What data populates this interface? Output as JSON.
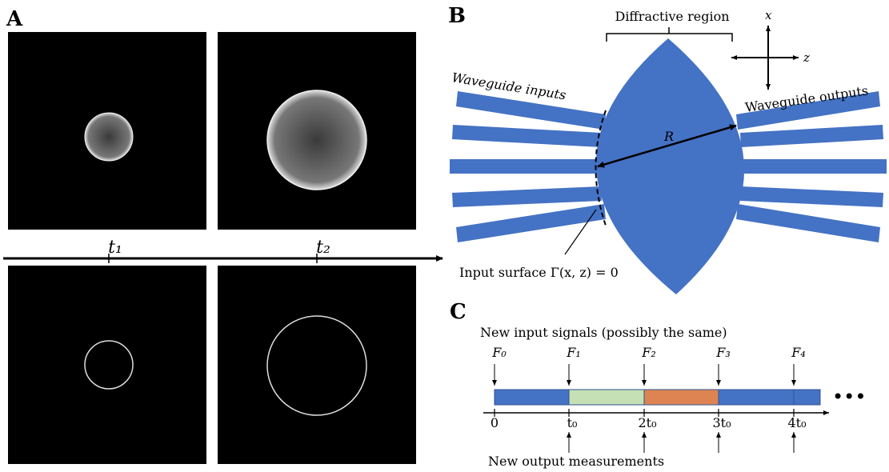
{
  "panel_a": {
    "label": "A",
    "times": [
      "t₁",
      "t₂"
    ]
  },
  "panel_b": {
    "label": "B",
    "region": "Diffractive region",
    "axis_x": "x",
    "axis_z": "z",
    "inputs": "Waveguide inputs",
    "outputs": "Waveguide outputs",
    "radius": "R",
    "surface": "Input surface Γ(x, z) = 0"
  },
  "panel_c": {
    "label": "C",
    "input_note": "New input signals (possibly the same)",
    "signals": [
      "F₀",
      "F₁",
      "F₂",
      "F₃",
      "F₄"
    ],
    "ticks": [
      "0",
      "t₀",
      "2t₀",
      "3t₀",
      "4t₀"
    ],
    "output_note": "New output measurements",
    "ellipsis": "•••"
  }
}
